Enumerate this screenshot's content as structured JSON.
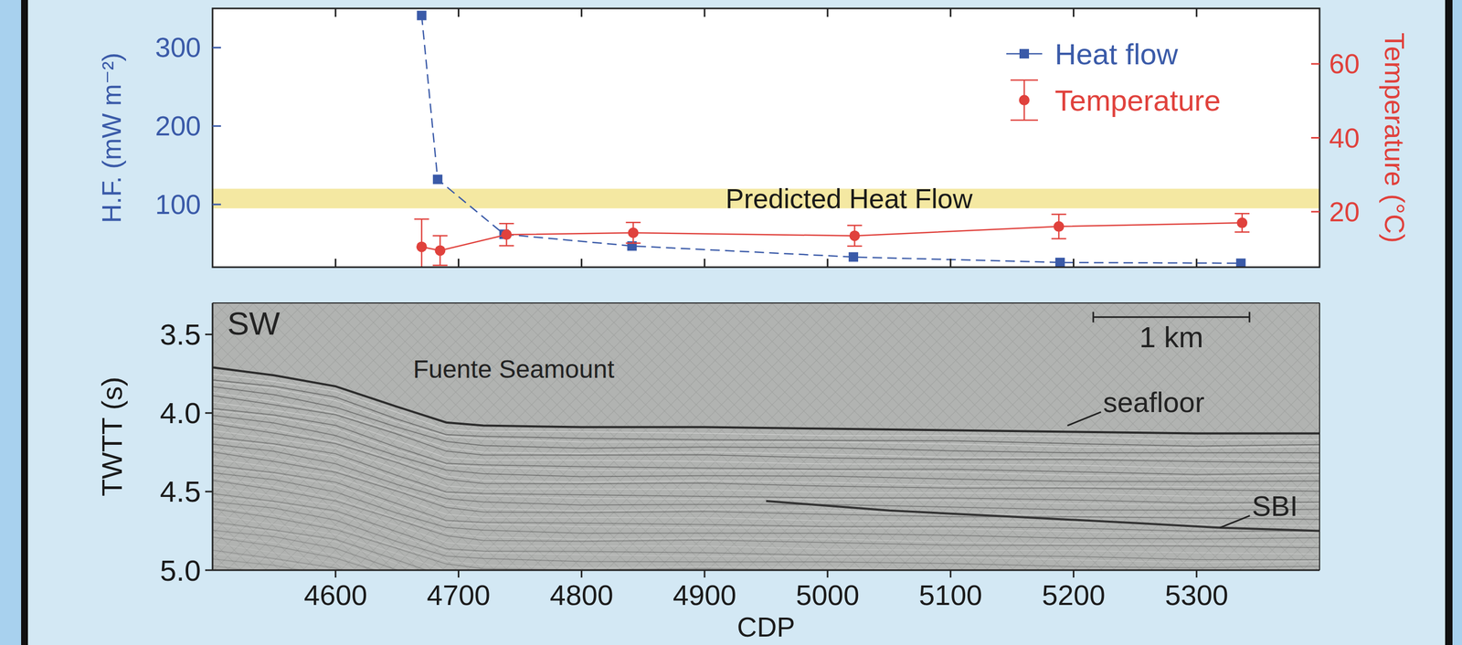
{
  "chart_data": [
    {
      "type": "line",
      "y_label": "H.F. (mW m⁻²)",
      "y2_label": "Temperature (°C)",
      "xlim": [
        4500,
        5400
      ],
      "xticks": [
        4600,
        4700,
        4800,
        4900,
        5000,
        5100,
        5200,
        5300
      ],
      "ylim": [
        20,
        350
      ],
      "yticks": [
        100,
        200,
        300
      ],
      "y2lim": [
        5,
        75
      ],
      "y2ticks": [
        20,
        40,
        60
      ],
      "tick_labels": "y",
      "legend": "upper right",
      "bands": [
        {
          "label": "Predicted Heat Flow",
          "range": [
            95,
            120
          ],
          "color": "#f4e8a2"
        }
      ],
      "series": [
        {
          "name": "Heat flow",
          "color": "#3a5aa8",
          "marker": "square",
          "line_style": "dashed",
          "x": [
            4670,
            4683,
            4737,
            4841,
            5021,
            5189,
            5336
          ],
          "values": [
            341,
            132,
            62,
            47,
            33,
            26,
            25
          ]
        },
        {
          "name": "Temperature",
          "color": "#e0413c",
          "marker": "circle",
          "line_style": "solid",
          "axis": "y2",
          "x": [
            4670,
            4685,
            4739,
            4842,
            5022,
            5188,
            5337
          ],
          "values": [
            10.5,
            9.5,
            13.8,
            14.3,
            13.5,
            16,
            17
          ],
          "errors": [
            7.5,
            4,
            3,
            2.8,
            2.8,
            3.3,
            2.5
          ]
        }
      ]
    },
    {
      "type": "line",
      "x_label": "CDP",
      "y_label": "TWTT (s)",
      "xlim": [
        4500,
        5400
      ],
      "xticks": [
        4600,
        4700,
        4800,
        4900,
        5000,
        5100,
        5200,
        5300
      ],
      "ylim": [
        5.0,
        3.3
      ],
      "yticks": [
        3.5,
        {
          "value": 4,
          "label": "4.0"
        },
        4.5,
        {
          "value": 5,
          "label": "5.0"
        }
      ],
      "series": [
        {
          "color": "#2b2b2b",
          "line_style": "solid",
          "x": [
            4500,
            4550,
            4600,
            4650,
            4690,
            4720,
            4800,
            4900,
            5000,
            5100,
            5200,
            5300,
            5400
          ],
          "values": [
            3.71,
            3.76,
            3.83,
            3.96,
            4.06,
            4.08,
            4.09,
            4.09,
            4.1,
            4.11,
            4.12,
            4.13,
            4.13
          ]
        },
        {
          "color": "#333333",
          "line_style": "solid",
          "x": [
            4950,
            5050,
            5150,
            5250,
            5320,
            5400
          ],
          "values": [
            4.56,
            4.62,
            4.66,
            4.7,
            4.73,
            4.75
          ]
        }
      ],
      "annotations": [
        {
          "text": "SW",
          "x": 4512,
          "y": 3.43
        },
        {
          "text": "Fuente Seamount",
          "x": 4663,
          "y": 3.72
        },
        {
          "text": "seafloor",
          "x": 5224,
          "y": 3.93,
          "arrow": [
            5195,
            4.08
          ]
        },
        {
          "text": "SBI",
          "x": 5345,
          "y": 4.59,
          "arrow": [
            5319,
            4.73
          ]
        }
      ],
      "scale_bar": {
        "label": "1 km",
        "x": [
          5216,
          5343
        ],
        "y": 3.39
      }
    }
  ]
}
